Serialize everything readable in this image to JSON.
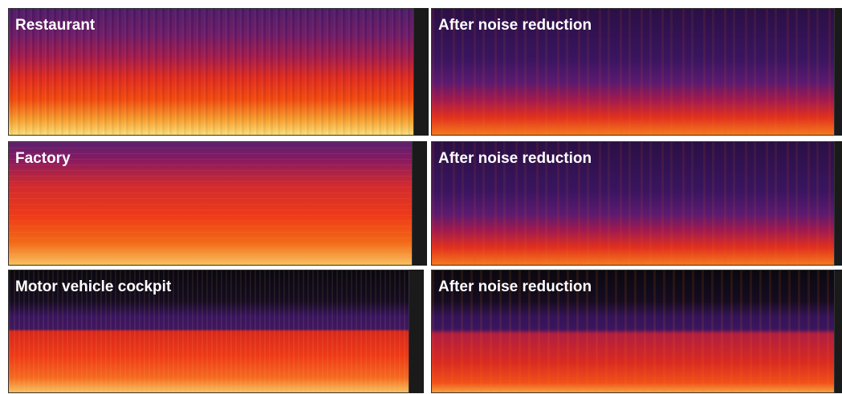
{
  "panels": [
    {
      "label": "Restaurant"
    },
    {
      "label": "After noise reduction"
    },
    {
      "label": "Factory"
    },
    {
      "label": "After noise reduction"
    },
    {
      "label": "Motor vehicle cockpit"
    },
    {
      "label": "After noise reduction"
    }
  ]
}
